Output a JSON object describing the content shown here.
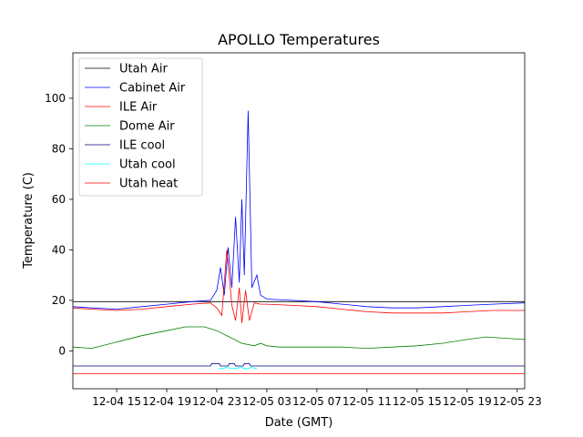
{
  "chart_data": {
    "type": "line",
    "title": "APOLLO Temperatures",
    "xlabel": "Date (GMT)",
    "ylabel": "Temperature (C)",
    "xlim_hours": [
      11.5,
      47.6
    ],
    "ylim": [
      -15,
      118
    ],
    "grid": false,
    "legend_position": "top-left",
    "x_ticks": [
      {
        "label": "12-04 15",
        "hour": 15
      },
      {
        "label": "12-04 19",
        "hour": 19
      },
      {
        "label": "12-04 23",
        "hour": 23
      },
      {
        "label": "12-05 03",
        "hour": 27
      },
      {
        "label": "12-05 07",
        "hour": 31
      },
      {
        "label": "12-05 11",
        "hour": 35
      },
      {
        "label": "12-05 15",
        "hour": 39
      },
      {
        "label": "12-05 19",
        "hour": 43
      },
      {
        "label": "12-05 23",
        "hour": 47
      }
    ],
    "y_ticks": [
      0,
      20,
      40,
      60,
      80,
      100
    ],
    "series": [
      {
        "name": "Utah Air",
        "color": "#000000",
        "x": [
          11.5,
          15,
          19,
          23,
          25,
          27,
          31,
          35,
          39,
          43,
          47.6
        ],
        "y": [
          19.5,
          19.5,
          19.5,
          19.5,
          19.5,
          19.5,
          19.5,
          19.5,
          19.5,
          19.5,
          19.5
        ]
      },
      {
        "name": "Cabinet Air",
        "color": "#0000ff",
        "x": [
          11.5,
          13,
          15,
          17,
          19,
          21,
          22.5,
          23,
          23.3,
          23.6,
          23.9,
          24.2,
          24.5,
          24.8,
          25.0,
          25.2,
          25.5,
          25.8,
          26.2,
          26.5,
          27,
          29,
          31,
          33,
          35,
          37,
          39,
          41,
          43,
          45,
          47.6
        ],
        "y": [
          17.5,
          17,
          16.5,
          17.5,
          18.5,
          19.5,
          20,
          24,
          33,
          22,
          41,
          25,
          53,
          27,
          60,
          30,
          95,
          25,
          30,
          22,
          20.5,
          20,
          19.5,
          18.5,
          17.5,
          17,
          17,
          17.5,
          18,
          18.5,
          19
        ]
      },
      {
        "name": "ILE Air",
        "color": "#ff0000",
        "x": [
          11.5,
          13,
          15,
          17,
          19,
          21,
          22.5,
          23,
          23.4,
          23.8,
          24.2,
          24.5,
          24.8,
          25.0,
          25.3,
          25.6,
          26,
          26.5,
          27,
          29,
          31,
          33,
          35,
          37,
          39,
          41,
          43,
          45,
          47.6
        ],
        "y": [
          17,
          16.5,
          16,
          16.5,
          17.5,
          18.5,
          19,
          17,
          14,
          40,
          18,
          12,
          25,
          11,
          24,
          12,
          19,
          18.5,
          18.5,
          18,
          17.5,
          16.5,
          15.5,
          15,
          15,
          15,
          15.5,
          16,
          16
        ]
      },
      {
        "name": "Dome Air",
        "color": "#008000",
        "x": [
          11.5,
          13,
          15,
          17,
          19,
          20.5,
          22,
          23,
          24,
          25,
          26,
          26.5,
          27,
          28,
          29,
          31,
          33,
          35,
          37,
          39,
          41,
          43,
          44.5,
          46,
          47.6
        ],
        "y": [
          1.5,
          1,
          3.5,
          6,
          8,
          9.5,
          9.5,
          8,
          5.5,
          3,
          2,
          3,
          2,
          1.5,
          1.5,
          1.5,
          1.5,
          1,
          1.5,
          2,
          3,
          4.5,
          5.5,
          5,
          4.5
        ]
      },
      {
        "name": "ILE cool",
        "color": "#000080",
        "x": [
          11.5,
          22.5,
          22.6,
          23.2,
          23.3,
          23.9,
          24.0,
          24.4,
          24.5,
          25.1,
          25.2,
          25.6,
          25.7,
          26.0,
          26.1,
          47.6
        ],
        "y": [
          -6,
          -6,
          -5,
          -5,
          -6,
          -6,
          -5,
          -5,
          -6,
          -6,
          -5,
          -5,
          -6,
          -6,
          -6,
          -6
        ]
      },
      {
        "name": "Utah cool",
        "color": "#00ffff",
        "x": [
          23.1,
          23.6,
          23.7,
          24.3,
          24.4,
          25.0,
          25.1,
          25.6,
          25.7,
          26.2
        ],
        "y": [
          -7,
          -7,
          -6.5,
          -7,
          -7,
          -6.5,
          -7,
          -7,
          -6.5,
          -7
        ]
      },
      {
        "name": "Utah heat",
        "color": "#ff0000",
        "x": [
          11.5,
          47.6
        ],
        "y": [
          -9,
          -9
        ]
      }
    ]
  }
}
